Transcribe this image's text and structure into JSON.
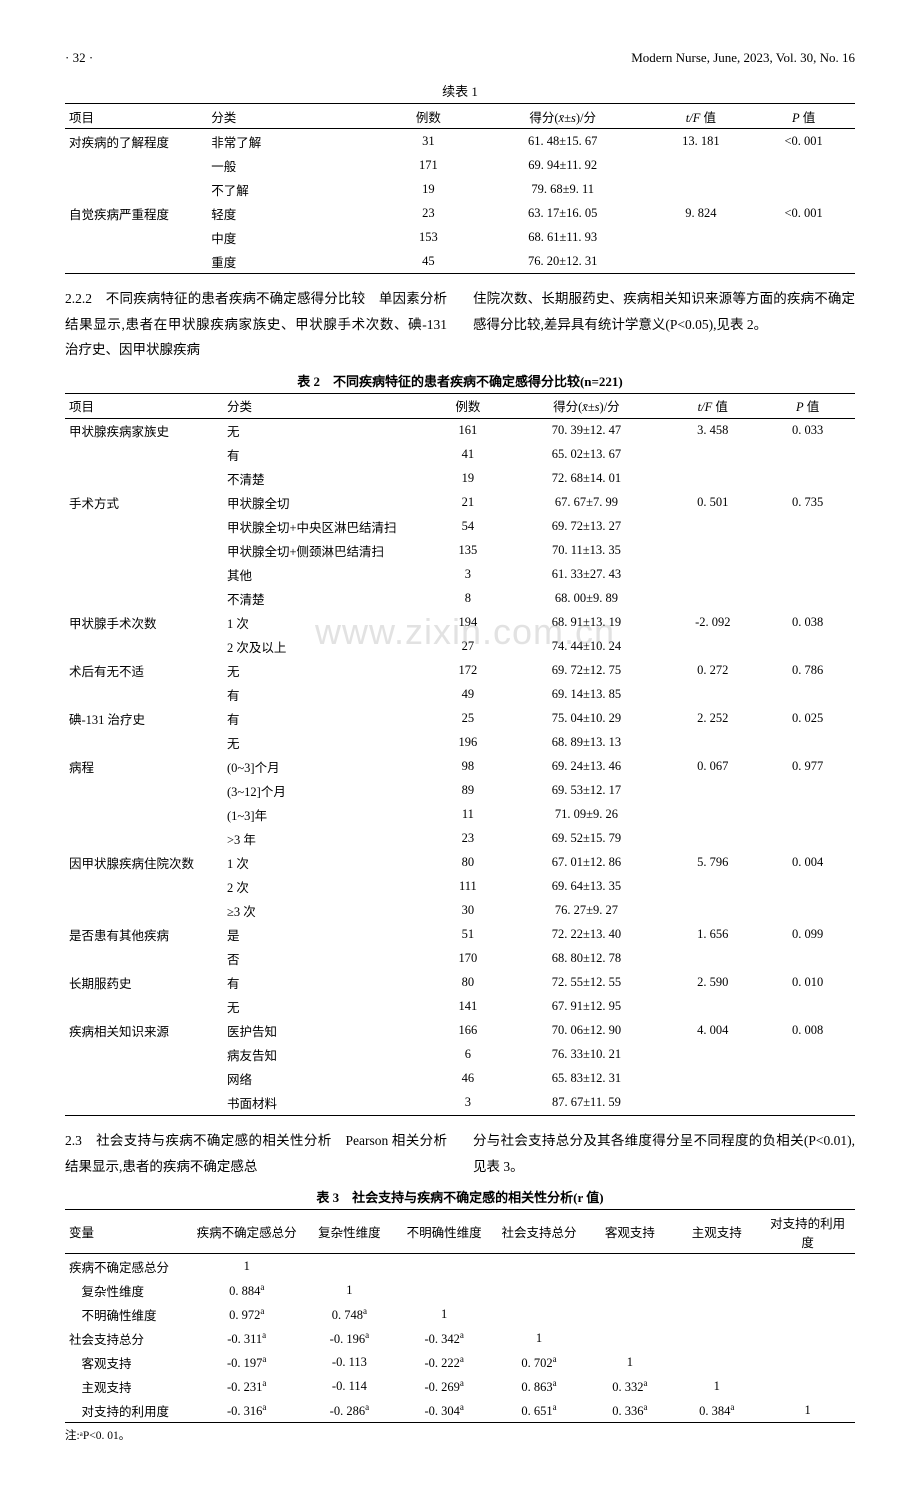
{
  "header": {
    "page": "· 32 ·",
    "journal": "Modern Nurse, June, 2023, Vol. 30, No. 16"
  },
  "table1cont": {
    "title": "续表 1",
    "headers": [
      "项目",
      "分类",
      "例数",
      "得分(x̄±s)/分",
      "t/F 值",
      "P 值"
    ],
    "rows": [
      [
        "对疾病的了解程度",
        "非常了解",
        "31",
        "61. 48±15. 67",
        "13. 181",
        "<0. 001"
      ],
      [
        "",
        "一般",
        "171",
        "69. 94±11. 92",
        "",
        ""
      ],
      [
        "",
        "不了解",
        "19",
        "79. 68±9. 11",
        "",
        ""
      ],
      [
        "自觉疾病严重程度",
        "轻度",
        "23",
        "63. 17±16. 05",
        "9. 824",
        "<0. 001"
      ],
      [
        "",
        "中度",
        "153",
        "68. 61±11. 93",
        "",
        ""
      ],
      [
        "",
        "重度",
        "45",
        "76. 20±12. 31",
        "",
        ""
      ]
    ]
  },
  "section22": {
    "left": "2.2.2　不同疾病特征的患者疾病不确定感得分比较　单因素分析结果显示,患者在甲状腺疾病家族史、甲状腺手术次数、碘-131 治疗史、因甲状腺疾病",
    "right": "住院次数、长期服药史、疾病相关知识来源等方面的疾病不确定感得分比较,差异具有统计学意义(P<0.05),见表 2。"
  },
  "table2": {
    "title": "表 2　不同疾病特征的患者疾病不确定感得分比较(n=221)",
    "headers": [
      "项目",
      "分类",
      "例数",
      "得分(x̄±s)/分",
      "t/F 值",
      "P 值"
    ],
    "rows": [
      [
        "甲状腺疾病家族史",
        "无",
        "161",
        "70. 39±12. 47",
        "3. 458",
        "0. 033"
      ],
      [
        "",
        "有",
        "41",
        "65. 02±13. 67",
        "",
        ""
      ],
      [
        "",
        "不清楚",
        "19",
        "72. 68±14. 01",
        "",
        ""
      ],
      [
        "手术方式",
        "甲状腺全切",
        "21",
        "67. 67±7. 99",
        "0. 501",
        "0. 735"
      ],
      [
        "",
        "甲状腺全切+中央区淋巴结清扫",
        "54",
        "69. 72±13. 27",
        "",
        ""
      ],
      [
        "",
        "甲状腺全切+侧颈淋巴结清扫",
        "135",
        "70. 11±13. 35",
        "",
        ""
      ],
      [
        "",
        "其他",
        "3",
        "61. 33±27. 43",
        "",
        ""
      ],
      [
        "",
        "不清楚",
        "8",
        "68. 00±9. 89",
        "",
        ""
      ],
      [
        "甲状腺手术次数",
        "1 次",
        "194",
        "68. 91±13. 19",
        "-2. 092",
        "0. 038"
      ],
      [
        "",
        "2 次及以上",
        "27",
        "74. 44±10. 24",
        "",
        ""
      ],
      [
        "术后有无不适",
        "无",
        "172",
        "69. 72±12. 75",
        "0. 272",
        "0. 786"
      ],
      [
        "",
        "有",
        "49",
        "69. 14±13. 85",
        "",
        ""
      ],
      [
        "碘-131 治疗史",
        "有",
        "25",
        "75. 04±10. 29",
        "2. 252",
        "0. 025"
      ],
      [
        "",
        "无",
        "196",
        "68. 89±13. 13",
        "",
        ""
      ],
      [
        "病程",
        "(0~3]个月",
        "98",
        "69. 24±13. 46",
        "0. 067",
        "0. 977"
      ],
      [
        "",
        "(3~12]个月",
        "89",
        "69. 53±12. 17",
        "",
        ""
      ],
      [
        "",
        "(1~3]年",
        "11",
        "71. 09±9. 26",
        "",
        ""
      ],
      [
        "",
        ">3 年",
        "23",
        "69. 52±15. 79",
        "",
        ""
      ],
      [
        "因甲状腺疾病住院次数",
        "1 次",
        "80",
        "67. 01±12. 86",
        "5. 796",
        "0. 004"
      ],
      [
        "",
        "2 次",
        "111",
        "69. 64±13. 35",
        "",
        ""
      ],
      [
        "",
        "≥3 次",
        "30",
        "76. 27±9. 27",
        "",
        ""
      ],
      [
        "是否患有其他疾病",
        "是",
        "51",
        "72. 22±13. 40",
        "1. 656",
        "0. 099"
      ],
      [
        "",
        "否",
        "170",
        "68. 80±12. 78",
        "",
        ""
      ],
      [
        "长期服药史",
        "有",
        "80",
        "72. 55±12. 55",
        "2. 590",
        "0. 010"
      ],
      [
        "",
        "无",
        "141",
        "67. 91±12. 95",
        "",
        ""
      ],
      [
        "疾病相关知识来源",
        "医护告知",
        "166",
        "70. 06±12. 90",
        "4. 004",
        "0. 008"
      ],
      [
        "",
        "病友告知",
        "6",
        "76. 33±10. 21",
        "",
        ""
      ],
      [
        "",
        "网络",
        "46",
        "65. 83±12. 31",
        "",
        ""
      ],
      [
        "",
        "书面材料",
        "3",
        "87. 67±11. 59",
        "",
        ""
      ]
    ]
  },
  "watermark": "www.zixin.com.cn",
  "section23": {
    "left": "2.3　社会支持与疾病不确定感的相关性分析　Pearson 相关分析结果显示,患者的疾病不确定感总",
    "right": "分与社会支持总分及其各维度得分呈不同程度的负相关(P<0.01),见表 3。"
  },
  "table3": {
    "title": "表 3　社会支持与疾病不确定感的相关性分析(r 值)",
    "headers": [
      "变量",
      "疾病不确定感总分",
      "复杂性维度",
      "不明确性维度",
      "社会支持总分",
      "客观支持",
      "主观支持",
      "对支持的利用度"
    ],
    "rows": [
      [
        "疾病不确定感总分",
        "1",
        "",
        "",
        "",
        "",
        "",
        ""
      ],
      [
        "复杂性维度",
        "0. 884ᵃ",
        "1",
        "",
        "",
        "",
        "",
        ""
      ],
      [
        "不明确性维度",
        "0. 972ᵃ",
        "0. 748ᵃ",
        "1",
        "",
        "",
        "",
        ""
      ],
      [
        "社会支持总分",
        "-0. 311ᵃ",
        "-0. 196ᵃ",
        "-0. 342ᵃ",
        "1",
        "",
        "",
        ""
      ],
      [
        "客观支持",
        "-0. 197ᵃ",
        "-0. 113",
        "-0. 222ᵃ",
        "0. 702ᵃ",
        "1",
        "",
        ""
      ],
      [
        "主观支持",
        "-0. 231ᵃ",
        "-0. 114",
        "-0. 269ᵃ",
        "0. 863ᵃ",
        "0. 332ᵃ",
        "1",
        ""
      ],
      [
        "对支持的利用度",
        "-0. 316ᵃ",
        "-0. 286ᵃ",
        "-0. 304ᵃ",
        "0. 651ᵃ",
        "0. 336ᵃ",
        "0. 384ᵃ",
        "1"
      ]
    ],
    "indented": [
      1,
      2,
      4,
      5,
      6
    ],
    "footnote": "注:ᵃP<0. 01。"
  }
}
